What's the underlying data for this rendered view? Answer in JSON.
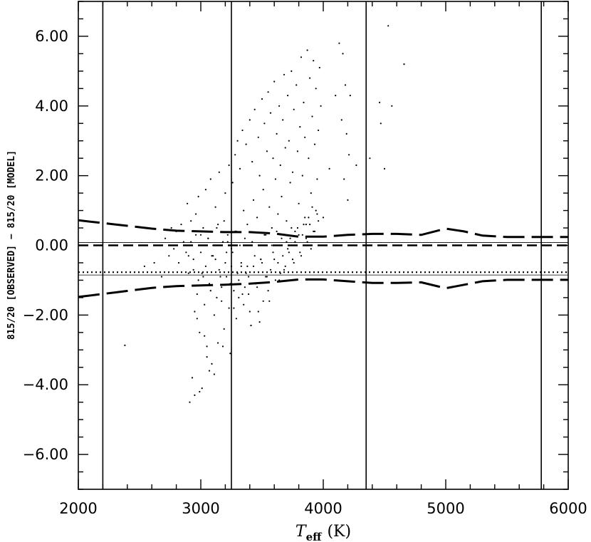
{
  "chart_data": {
    "type": "scatter",
    "title": "",
    "xlabel": {
      "symbol": "T",
      "subscript": "eff",
      "unit": "(K)"
    },
    "ylabel": "815/20 [OBSERVED]  −  815/20 [MODEL]",
    "xlim": [
      2000,
      6000
    ],
    "ylim": [
      -7,
      7
    ],
    "x_ticks": [
      2000,
      3000,
      4000,
      5000,
      6000
    ],
    "x_tick_labels": [
      "2000",
      "3000",
      "4000",
      "5000",
      "6000"
    ],
    "y_ticks": [
      -6,
      -4,
      -2,
      0,
      2,
      4,
      6
    ],
    "y_tick_labels": [
      "−6.00",
      "−4.00",
      "−2.00",
      "0.00",
      "2.00",
      "4.00",
      "6.00"
    ],
    "x_minor_step": 200,
    "y_minor_step": 0.5,
    "grid": false,
    "vertical_lines": [
      2200,
      3250,
      4350,
      5780
    ],
    "horizontal_lines": [
      {
        "y": 0.0,
        "style": "short-dash"
      },
      {
        "y": 0.08,
        "style": "thin-solid"
      },
      {
        "y": -0.77,
        "style": "dotted"
      },
      {
        "y": -0.85,
        "style": "thin-solid"
      }
    ],
    "upper_envelope": {
      "x": [
        2000,
        2300,
        2600,
        2800,
        3000,
        3200,
        3400,
        3600,
        3800,
        4000,
        4200,
        4400,
        4600,
        4800,
        5000,
        5150,
        5300,
        5500,
        5800,
        6000
      ],
      "y": [
        0.72,
        0.6,
        0.48,
        0.42,
        0.4,
        0.38,
        0.38,
        0.34,
        0.25,
        0.25,
        0.3,
        0.33,
        0.33,
        0.3,
        0.48,
        0.4,
        0.28,
        0.24,
        0.24,
        0.24
      ]
    },
    "lower_envelope": {
      "x": [
        2000,
        2300,
        2600,
        2800,
        3000,
        3200,
        3400,
        3600,
        3800,
        4000,
        4200,
        4400,
        4600,
        4800,
        5000,
        5150,
        5300,
        5500,
        5800,
        6000
      ],
      "y": [
        -1.48,
        -1.35,
        -1.22,
        -1.17,
        -1.15,
        -1.13,
        -1.1,
        -1.05,
        -0.98,
        -0.98,
        -1.03,
        -1.08,
        -1.08,
        -1.06,
        -1.23,
        -1.13,
        -1.03,
        -0.99,
        -0.99,
        -0.99
      ]
    },
    "points": {
      "x": [
        2380,
        2540,
        2620,
        2680,
        2710,
        2740,
        2760,
        2780,
        2800,
        2820,
        2840,
        2860,
        2880,
        2890,
        2900,
        2910,
        2920,
        2930,
        2940,
        2950,
        2960,
        2970,
        2980,
        2990,
        3000,
        3010,
        3020,
        3030,
        3040,
        3050,
        3060,
        3070,
        3080,
        3090,
        3100,
        3110,
        3120,
        3130,
        3140,
        3150,
        3160,
        3170,
        3180,
        3190,
        3200,
        3210,
        3220,
        3230,
        3240,
        3250,
        3260,
        3270,
        3280,
        3290,
        3300,
        3310,
        3320,
        3330,
        3340,
        3350,
        3360,
        3370,
        3380,
        3390,
        3400,
        3410,
        3420,
        3430,
        3440,
        3450,
        3460,
        3470,
        3480,
        3490,
        3500,
        3510,
        3520,
        3530,
        3540,
        3550,
        3560,
        3570,
        3580,
        3590,
        3600,
        3610,
        3620,
        3630,
        3640,
        3650,
        3660,
        3670,
        3680,
        3690,
        3700,
        3710,
        3720,
        3730,
        3740,
        3750,
        3760,
        3770,
        3780,
        3790,
        3800,
        3810,
        3820,
        3830,
        3840,
        3850,
        3860,
        3870,
        3880,
        3890,
        3900,
        3910,
        3920,
        3930,
        3940,
        3950,
        3960,
        3970,
        3980,
        4000,
        4050,
        4100,
        4130,
        4150,
        4160,
        4170,
        4180,
        4190,
        4200,
        4210,
        4220,
        4270,
        4380,
        4460,
        4470,
        4500,
        4530,
        4560,
        4660,
        2900,
        2920,
        2940,
        2960,
        2980,
        3000,
        3020,
        3040,
        3060,
        3080,
        3100,
        3120,
        3140,
        3160,
        3180,
        3200,
        3220,
        3240,
        3260,
        3280,
        3300,
        3320,
        3340,
        3360,
        3380,
        3400,
        3420,
        3440,
        3460,
        3480,
        3500,
        3520,
        3540,
        3560,
        3580,
        3600,
        3620,
        3640,
        3660,
        3680,
        3700,
        3720,
        3740,
        3760,
        3780,
        3800,
        3820,
        3840,
        3860,
        3880,
        3900,
        3920,
        3940,
        3960,
        2950,
        2970,
        2990,
        3010,
        3030,
        3050,
        3070,
        3090,
        3110,
        3130,
        3150,
        3170,
        3190,
        3210,
        3230,
        3250,
        3270,
        3290,
        3310,
        3330,
        3350,
        3370,
        3390,
        3410,
        3430,
        3450,
        3470,
        3490,
        3510,
        3530,
        3550,
        3570,
        3590,
        3610,
        3630,
        3650,
        3670,
        3690,
        3710,
        3730,
        3750,
        3770,
        3790,
        3810,
        3830,
        3850,
        3870,
        3890,
        3910,
        3930,
        3950
      ],
      "y": [
        -2.87,
        -0.6,
        -0.5,
        -0.9,
        0.2,
        -0.3,
        0.5,
        -0.1,
        0.4,
        -0.5,
        0.6,
        0.1,
        -0.2,
        1.2,
        -0.8,
        -4.5,
        0.7,
        -3.8,
        -0.4,
        -4.3,
        0.9,
        -2.1,
        1.4,
        -4.2,
        0.3,
        -4.1,
        -0.9,
        -2.6,
        1.6,
        -3.2,
        0.2,
        -3.6,
        1.9,
        -3.4,
        -0.3,
        -3.7,
        1.1,
        0.5,
        -2.8,
        2.1,
        0.0,
        -1.6,
        -2.9,
        0.7,
        1.5,
        -0.2,
        0.1,
        2.3,
        -3.1,
        -0.1,
        1.8,
        -1.8,
        2.6,
        0.4,
        3.0,
        -1.5,
        2.2,
        -0.6,
        3.3,
        1.0,
        -1.2,
        2.9,
        0.6,
        -0.9,
        3.6,
        -2.3,
        2.4,
        1.3,
        3.9,
        -1.1,
        0.8,
        3.1,
        2.0,
        -0.4,
        4.2,
        1.6,
        3.5,
        0.3,
        2.7,
        4.4,
        1.1,
        3.8,
        0.5,
        2.5,
        4.7,
        1.9,
        3.2,
        0.9,
        4.0,
        2.3,
        1.4,
        3.6,
        4.9,
        2.8,
        0.7,
        4.3,
        3.0,
        1.8,
        5.0,
        2.1,
        3.9,
        0.4,
        4.6,
        2.7,
        1.2,
        3.4,
        5.4,
        2.0,
        4.1,
        3.1,
        0.6,
        5.6,
        2.5,
        4.8,
        1.5,
        3.7,
        5.3,
        2.9,
        4.5,
        1.9,
        3.3,
        5.1,
        4.0,
        0.8,
        2.2,
        4.3,
        5.8,
        3.6,
        5.5,
        1.9,
        4.6,
        3.2,
        1.3,
        2.6,
        4.3,
        2.3,
        2.5,
        4.1,
        3.5,
        2.2,
        6.3,
        4.0,
        5.2,
        -0.3,
        0.1,
        -0.7,
        0.3,
        -1.0,
        -0.2,
        0.5,
        -0.6,
        0.2,
        -1.3,
        0.0,
        -0.4,
        0.6,
        -0.9,
        0.1,
        -0.5,
        0.3,
        -1.1,
        -0.2,
        0.4,
        -0.8,
        0.0,
        -1.4,
        0.2,
        -0.6,
        -1.9,
        0.1,
        -0.3,
        -1.2,
        -2.2,
        -0.5,
        0.3,
        -0.9,
        -1.6,
        0.0,
        -0.4,
        0.4,
        -1.0,
        0.2,
        -0.7,
        0.1,
        -0.2,
        0.5,
        -0.5,
        0.0,
        0.3,
        -0.3,
        0.6,
        0.2,
        0.8,
        -0.1,
        0.4,
        1.0,
        0.7,
        -1.9,
        -1.4,
        -2.5,
        -0.8,
        -1.7,
        -2.9,
        -1.1,
        -0.3,
        -2.0,
        -1.5,
        -0.7,
        -1.2,
        -2.4,
        -0.9,
        -1.8,
        -0.6,
        -1.3,
        -2.1,
        -1.0,
        -0.5,
        -1.7,
        -0.8,
        -1.4,
        -2.3,
        -0.6,
        -1.1,
        -1.9,
        -0.4,
        -1.6,
        -0.9,
        -1.3,
        -0.7,
        -0.2,
        -1.0,
        -0.5,
        -0.8,
        -0.3,
        -0.6,
        -0.1,
        0.2,
        -0.4,
        0.1,
        0.5,
        -0.2,
        0.3,
        0.8,
        0.1,
        0.6,
        1.1,
        0.4,
        0.9
      ]
    }
  }
}
